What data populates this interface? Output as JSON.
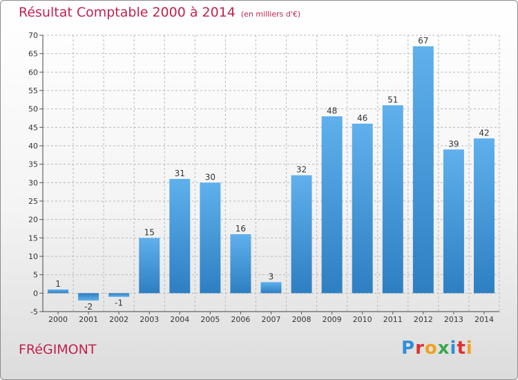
{
  "header": {
    "title": "Résultat Comptable 2000 à 2014",
    "unit": "(en milliers d'€)"
  },
  "footer": {
    "commune": "FRéGIMONT",
    "logo_letters": [
      "P",
      "r",
      "o",
      "x",
      "i",
      "t",
      "i"
    ],
    "logo_colors": [
      "#2f8fd8",
      "#e03030",
      "#f0a020",
      "#3aa84a",
      "#2f8fd8",
      "#e03030",
      "#f0a020"
    ]
  },
  "colors": {
    "bar": "#3d8fd0",
    "bar_light": "#6ab4ec",
    "grid": "#b7b7b7"
  },
  "chart_data": {
    "type": "bar",
    "title": "Résultat Comptable 2000 à 2014",
    "subtitle": "(en milliers d'€)",
    "xlabel": "",
    "ylabel": "",
    "categories": [
      "2000",
      "2001",
      "2002",
      "2003",
      "2004",
      "2005",
      "2006",
      "2007",
      "2008",
      "2009",
      "2010",
      "2011",
      "2012",
      "2013",
      "2014"
    ],
    "values": [
      1,
      -2,
      -1,
      15,
      31,
      30,
      16,
      3,
      32,
      48,
      46,
      51,
      67,
      39,
      42
    ],
    "ylim": [
      -5,
      70
    ],
    "yticks": [
      -5,
      0,
      5,
      10,
      15,
      20,
      25,
      30,
      35,
      40,
      45,
      50,
      55,
      60,
      65,
      70
    ],
    "grid": true,
    "legend": "none"
  }
}
